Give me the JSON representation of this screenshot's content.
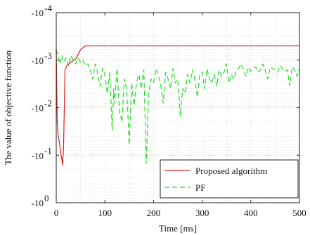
{
  "chart_data": {
    "type": "line",
    "title": "",
    "xlabel": "Time [ms]",
    "ylabel": "The value of objective function",
    "xlim": [
      0,
      500
    ],
    "ylim_exponent": [
      -4,
      0
    ],
    "y_scale": "log (negative values, axis inverted)",
    "x_ticks": [
      "0",
      "100",
      "200",
      "300",
      "400",
      "500"
    ],
    "y_ticks": [
      {
        "base": "-10",
        "exp": "-4"
      },
      {
        "base": "-10",
        "exp": "-3"
      },
      {
        "base": "-10",
        "exp": "-2"
      },
      {
        "base": "-10",
        "exp": "-1"
      },
      {
        "base": "-10",
        "exp": "0"
      }
    ],
    "grid": true,
    "legend_position": "bottom-right",
    "series": [
      {
        "name": "Proposed algorithm",
        "color": "#e41a1c",
        "style": "solid",
        "x": [
          0,
          2,
          4,
          6,
          8,
          10,
          12,
          13,
          15,
          18,
          22,
          30,
          40,
          50,
          60,
          100,
          200,
          300,
          400,
          500
        ],
        "y": [
          -0.0006,
          -0.02,
          -0.04,
          -0.05,
          -0.07,
          -0.1,
          -0.13,
          -0.16,
          -0.07,
          -0.0016,
          -0.0013,
          -0.0011,
          -0.00095,
          -0.0006,
          -0.0005,
          -0.0005,
          -0.0005,
          -0.0005,
          -0.0005,
          -0.0005
        ]
      },
      {
        "name": "PF",
        "color": "#22dd22",
        "style": "dashed",
        "x": [
          0,
          2,
          5,
          8,
          12,
          15,
          20,
          25,
          30,
          35,
          40,
          45,
          50,
          55,
          60,
          65,
          70,
          75,
          80,
          85,
          90,
          95,
          100,
          105,
          110,
          115,
          118,
          120,
          125,
          130,
          135,
          140,
          145,
          150,
          155,
          160,
          165,
          170,
          175,
          180,
          183,
          185,
          190,
          195,
          200,
          205,
          210,
          215,
          220,
          225,
          230,
          235,
          240,
          245,
          250,
          255,
          260,
          265,
          270,
          275,
          280,
          285,
          290,
          295,
          300,
          305,
          310,
          315,
          320,
          325,
          330,
          335,
          340,
          345,
          350,
          355,
          360,
          365,
          370,
          375,
          380,
          385,
          390,
          395,
          400,
          405,
          410,
          415,
          420,
          425,
          430,
          435,
          440,
          445,
          450,
          455,
          460,
          465,
          470,
          475,
          480,
          485,
          490,
          495,
          500
        ],
        "y": [
          -0.0006,
          -0.0007,
          -0.0009,
          -0.0012,
          -0.0008,
          -0.0011,
          -0.0009,
          -0.0013,
          -0.0008,
          -0.001,
          -0.0012,
          -0.0009,
          -0.0011,
          -0.001,
          -0.0013,
          -0.0012,
          -0.0016,
          -0.0025,
          -0.0012,
          -0.0018,
          -0.0035,
          -0.0015,
          -0.002,
          -0.005,
          -0.0018,
          -0.03,
          -0.004,
          -0.008,
          -0.0015,
          -0.012,
          -0.02,
          -0.0025,
          -0.004,
          -0.06,
          -0.003,
          -0.009,
          -0.003,
          -0.002,
          -0.004,
          -0.0016,
          -0.02,
          -0.15,
          -0.005,
          -0.0025,
          -0.003,
          -0.0015,
          -0.002,
          -0.0035,
          -0.008,
          -0.0018,
          -0.0025,
          -0.004,
          -0.0015,
          -0.003,
          -0.0025,
          -0.015,
          -0.004,
          -0.005,
          -0.002,
          -0.003,
          -0.0016,
          -0.0025,
          -0.006,
          -0.002,
          -0.0018,
          -0.004,
          -0.0015,
          -0.0025,
          -0.003,
          -0.002,
          -0.0035,
          -0.0016,
          -0.0022,
          -0.0018,
          -0.0012,
          -0.003,
          -0.002,
          -0.0025,
          -0.0017,
          -0.0015,
          -0.0012,
          -0.0016,
          -0.0022,
          -0.0014,
          -0.0017,
          -0.0015,
          -0.0014,
          -0.0018,
          -0.0016,
          -0.0012,
          -0.0017,
          -0.0025,
          -0.0014,
          -0.0015,
          -0.0016,
          -0.0018,
          -0.0013,
          -0.0015,
          -0.0017,
          -0.0016,
          -0.0035,
          -0.0014,
          -0.0016,
          -0.0022,
          -0.0015
        ]
      }
    ]
  }
}
